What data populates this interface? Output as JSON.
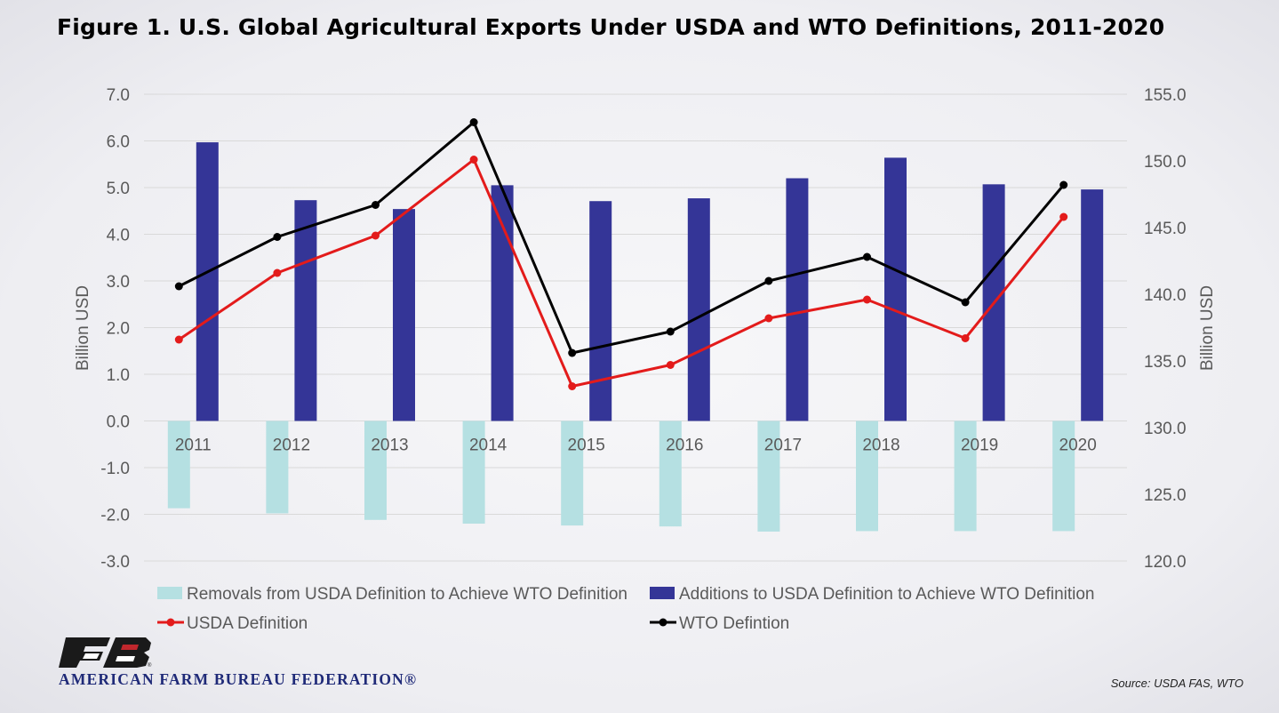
{
  "title": "Figure 1. U.S. Global Agricultural Exports Under USDA and WTO Definitions, 2011-2020",
  "source": "Source: USDA FAS, WTO",
  "logo": {
    "org_name": "AMERICAN FARM BUREAU FEDERATION®",
    "icon": "fb-logo-icon"
  },
  "colors": {
    "removals": "#b5e0e2",
    "additions": "#343597",
    "usda_line": "#e31b1b",
    "wto_line": "#000000",
    "grid": "#d9d9d9",
    "text": "#595959"
  },
  "chart_data": {
    "type": "bar",
    "title": "Figure 1. U.S. Global Agricultural Exports Under USDA and WTO Definitions, 2011-2020",
    "categories": [
      "2011",
      "2012",
      "2013",
      "2014",
      "2015",
      "2016",
      "2017",
      "2018",
      "2019",
      "2020"
    ],
    "left_axis": {
      "label": "Billion USD",
      "ylim": [
        -3.0,
        7.0
      ],
      "ticks": [
        "7.0",
        "6.0",
        "5.0",
        "4.0",
        "3.0",
        "2.0",
        "1.0",
        "0.0",
        "-1.0",
        "-2.0",
        "-3.0"
      ]
    },
    "right_axis": {
      "label": "Billion USD",
      "ylim": [
        120.0,
        155.0
      ],
      "ticks": [
        "155.0",
        "150.0",
        "145.0",
        "140.0",
        "135.0",
        "130.0",
        "125.0",
        "120.0"
      ]
    },
    "grid": true,
    "legend_position": "bottom",
    "series": [
      {
        "name": "Removals from USDA Definition to Achieve WTO Definition",
        "type": "bar",
        "axis": "left",
        "values": [
          -1.87,
          -1.98,
          -2.12,
          -2.2,
          -2.24,
          -2.26,
          -2.37,
          -2.36,
          -2.36,
          -2.36
        ]
      },
      {
        "name": "Additions to USDA Definition to Achieve WTO Definition",
        "type": "bar",
        "axis": "left",
        "values": [
          5.97,
          4.73,
          4.54,
          5.05,
          4.71,
          4.77,
          5.2,
          5.64,
          5.07,
          4.96
        ]
      },
      {
        "name": "USDA Definition",
        "type": "line",
        "axis": "right",
        "values": [
          136.6,
          141.6,
          144.4,
          150.1,
          133.1,
          134.7,
          138.2,
          139.6,
          136.7,
          145.8
        ]
      },
      {
        "name": "WTO Defintion",
        "type": "line",
        "axis": "right",
        "values": [
          140.6,
          144.3,
          146.7,
          152.9,
          135.6,
          137.2,
          141.0,
          142.8,
          139.4,
          148.2
        ]
      }
    ]
  }
}
